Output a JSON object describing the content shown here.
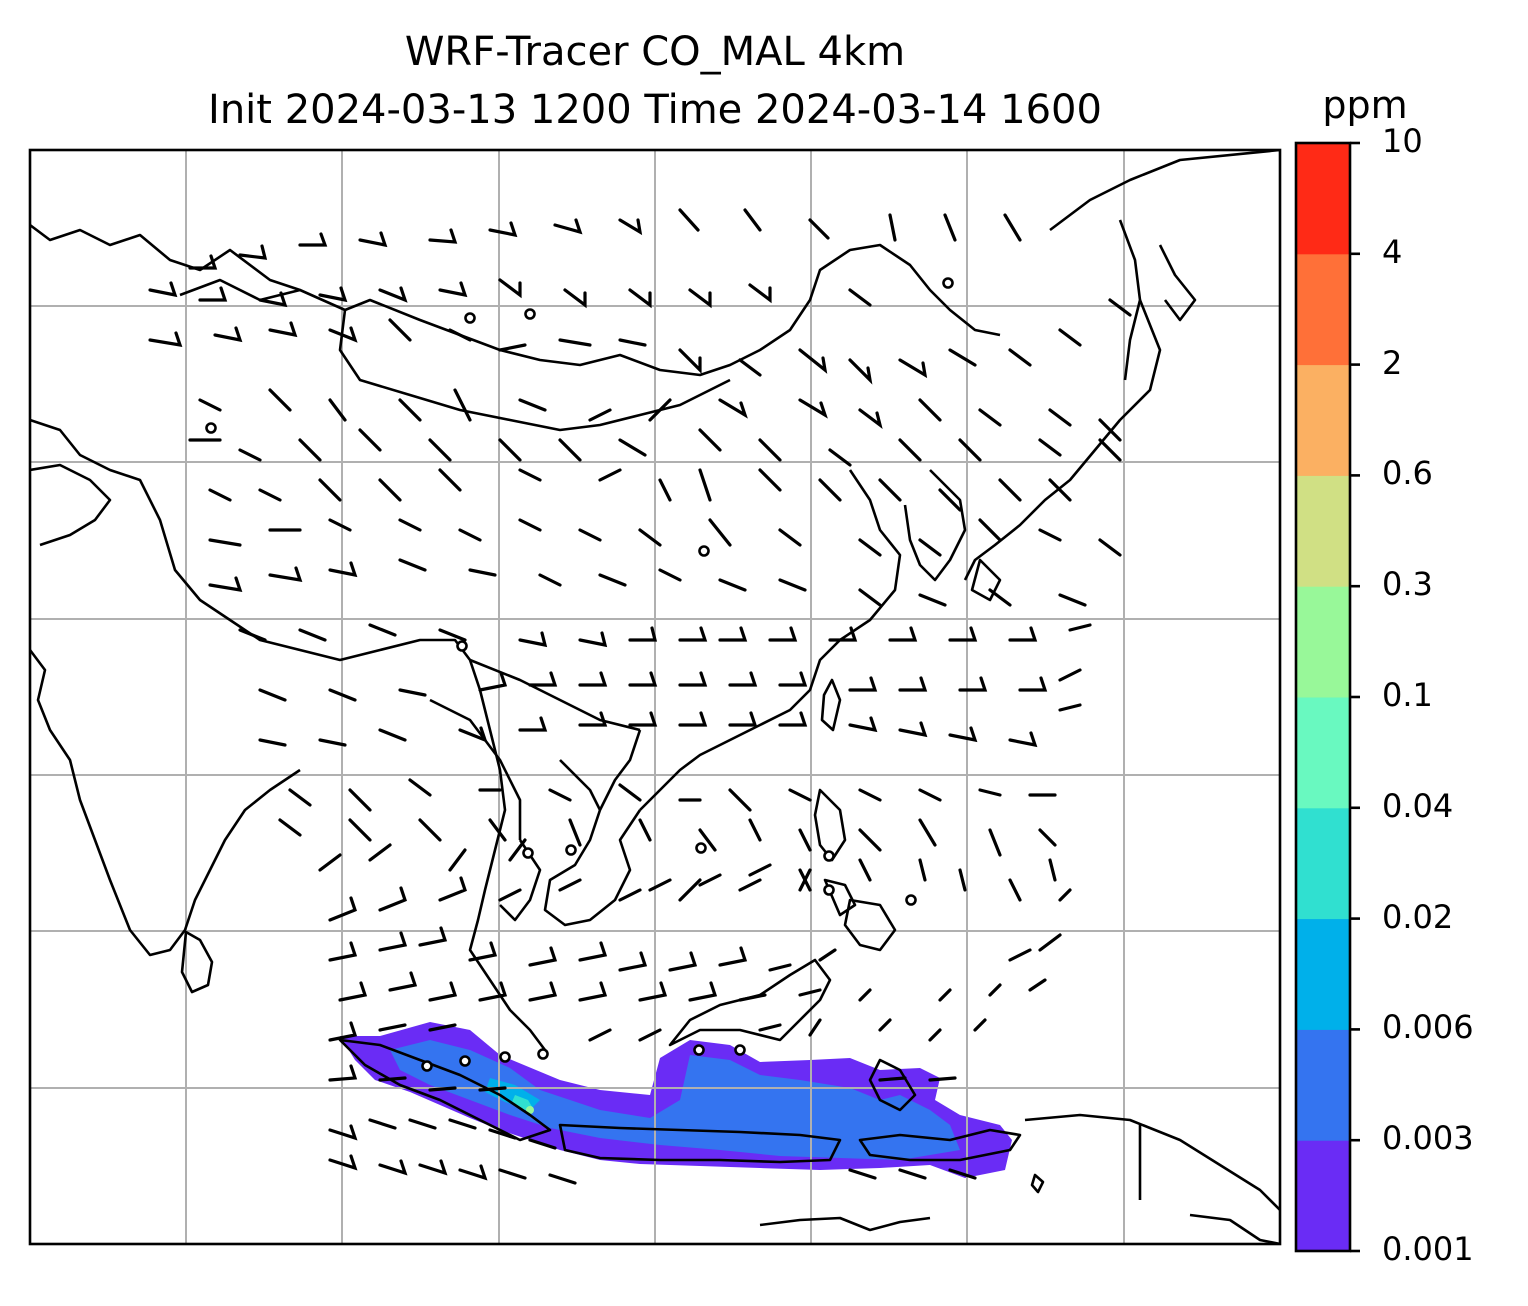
{
  "chart_data": {
    "type": "map",
    "title": "WRF-Tracer CO_MAL 4km",
    "subtitle": "Init 2024-03-13 1200 Time 2024-03-14 1600",
    "colorbar": {
      "unit": "ppm",
      "levels": [
        "0.001",
        "0.003",
        "0.006",
        "0.02",
        "0.04",
        "0.1",
        "0.3",
        "0.6",
        "2",
        "4",
        "10"
      ],
      "colors": [
        "#6a2cf5",
        "#3474f0",
        "#00b0ea",
        "#30e0d0",
        "#69f9c0",
        "#98f899",
        "#d0e084",
        "#fbb062",
        "#ff7038",
        "#ff2a16"
      ]
    },
    "grid": true,
    "features": [
      "coastlines",
      "country borders",
      "wind barbs",
      "city markers"
    ]
  }
}
